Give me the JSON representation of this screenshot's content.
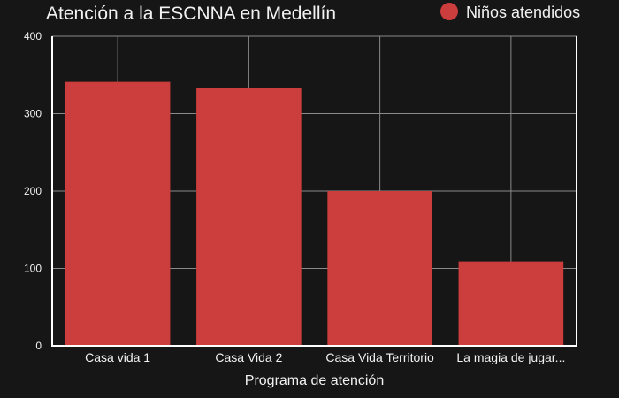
{
  "chart_data": {
    "type": "bar",
    "title": "Atención a la ESCNNA en Medellín",
    "xlabel": "Programa de atención",
    "ylabel": "",
    "categories": [
      "Casa vida 1",
      "Casa Vida 2",
      "Casa Vida Territorio",
      "La magia de jugar..."
    ],
    "series": [
      {
        "name": "Niños atendidos",
        "values": [
          341,
          333,
          200,
          109
        ]
      }
    ],
    "ylim": [
      0,
      400
    ],
    "yticks": [
      0,
      100,
      200,
      300,
      400
    ],
    "grid": true,
    "legend": "top-right",
    "colors": {
      "background": "#161616",
      "plot_background": "#161616",
      "bar": "#cc3d3d",
      "grid": "#8a8a8a",
      "axis": "#ffffff",
      "text": "#f2f2f2"
    }
  }
}
